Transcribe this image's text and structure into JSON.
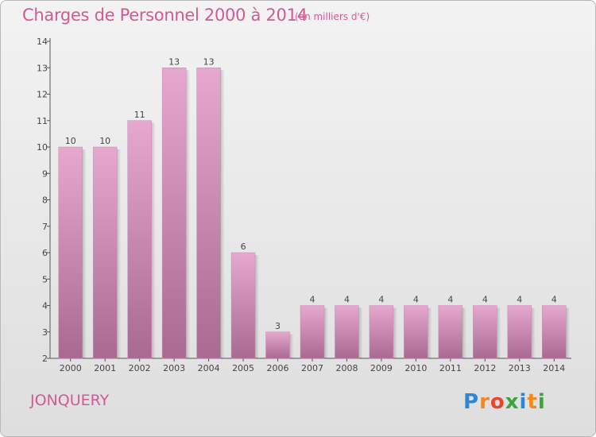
{
  "chart_data": {
    "type": "bar",
    "title": "Charges de Personnel 2000 à 2014",
    "subtitle": "(en milliers d'€)",
    "categories": [
      "2000",
      "2001",
      "2002",
      "2003",
      "2004",
      "2005",
      "2006",
      "2007",
      "2008",
      "2009",
      "2010",
      "2011",
      "2012",
      "2013",
      "2014"
    ],
    "values": [
      10,
      10,
      11,
      13,
      13,
      6,
      3,
      4,
      4,
      4,
      4,
      4,
      4,
      4,
      4
    ],
    "ylim": [
      2,
      14
    ],
    "yticks": [
      2,
      3,
      4,
      5,
      6,
      7,
      8,
      9,
      10,
      11,
      12,
      13,
      14
    ],
    "grid": false,
    "colors": {
      "bar_top": "#e6a8cf",
      "bar_bottom": "#a96a91",
      "title": "#d05a96"
    }
  },
  "footer": {
    "place": "JONQUERY",
    "logo_letters": [
      "P",
      "r",
      "o",
      "x",
      "i",
      "t",
      "i"
    ],
    "logo_colors": [
      "#2f86d6",
      "#f08a1c",
      "#e8452a",
      "#3aa53a",
      "#2f86d6",
      "#f08a1c",
      "#3aa53a"
    ]
  }
}
